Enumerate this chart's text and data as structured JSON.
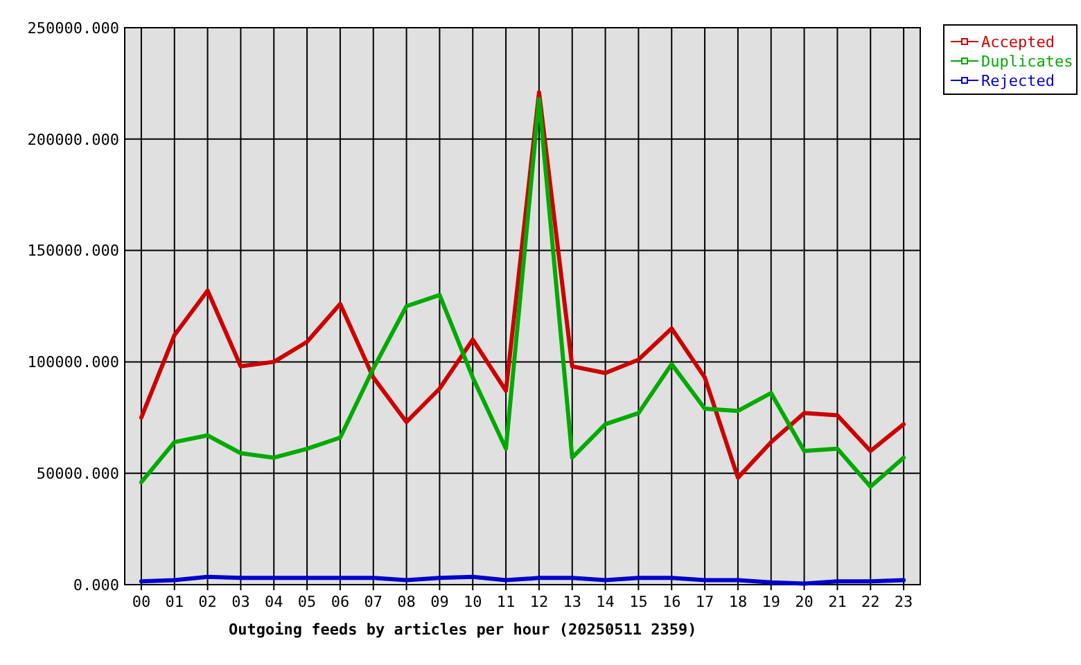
{
  "chart_data": {
    "type": "line",
    "xlabel": "Outgoing feeds by articles per hour (20250511 2359)",
    "categories": [
      "00",
      "01",
      "02",
      "03",
      "04",
      "05",
      "06",
      "07",
      "08",
      "09",
      "10",
      "11",
      "12",
      "13",
      "14",
      "15",
      "16",
      "17",
      "18",
      "19",
      "20",
      "21",
      "22",
      "23"
    ],
    "series": [
      {
        "name": "Accepted",
        "color": "#cc0000",
        "values": [
          75000,
          112000,
          132000,
          98000,
          100000,
          109000,
          126000,
          93000,
          73000,
          88000,
          110000,
          87000,
          221000,
          98000,
          95000,
          101000,
          115000,
          93000,
          48000,
          64000,
          77000,
          76000,
          60000,
          72000
        ]
      },
      {
        "name": "Duplicates",
        "color": "#00aa00",
        "values": [
          46000,
          64000,
          67000,
          59000,
          57000,
          61000,
          66000,
          97000,
          125000,
          130000,
          93000,
          61000,
          218000,
          57000,
          72000,
          77000,
          99000,
          79000,
          78000,
          86000,
          60000,
          61000,
          44000,
          57000
        ]
      },
      {
        "name": "Rejected",
        "color": "#0000cc",
        "values": [
          1500,
          2000,
          3500,
          3000,
          3000,
          3000,
          3000,
          3000,
          2000,
          3000,
          3500,
          2000,
          3000,
          3000,
          2000,
          3000,
          3000,
          2000,
          2000,
          1000,
          500,
          1500,
          1500,
          2000
        ]
      }
    ],
    "ylim": [
      0,
      250000
    ],
    "yticks": [
      {
        "value": 0,
        "label": "0.000"
      },
      {
        "value": 50000,
        "label": "50000.000"
      },
      {
        "value": 100000,
        "label": "100000.000"
      },
      {
        "value": 150000,
        "label": "150000.000"
      },
      {
        "value": 200000,
        "label": "200000.000"
      },
      {
        "value": 250000,
        "label": "250000.000"
      }
    ],
    "grid": true,
    "legend": "top right",
    "marker": "none",
    "line_style": "solid"
  }
}
